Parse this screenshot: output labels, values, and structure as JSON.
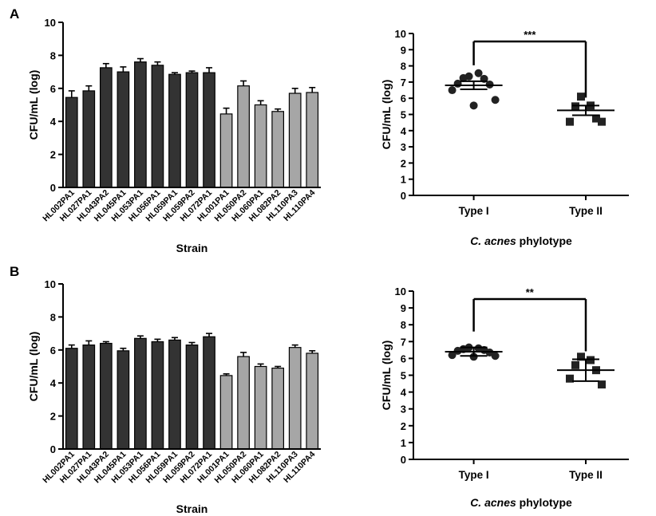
{
  "panel_labels": [
    "A",
    "B"
  ],
  "chart_data": [
    {
      "panel": "A",
      "type": "bar",
      "xlabel": "Strain",
      "ylabel": "CFU/mL (log)",
      "ylim": [
        0,
        10
      ],
      "yticks": [
        0,
        2,
        4,
        6,
        8,
        10
      ],
      "categories": [
        "HL002PA1",
        "HL027PA1",
        "HL043PA2",
        "HL045PA1",
        "HL053PA1",
        "HL056PA1",
        "HL059PA1",
        "HL059PA2",
        "HL072PA1",
        "HL001PA1",
        "HL050PA2",
        "HL060PA1",
        "HL082PA2",
        "HL110PA3",
        "HL110PA4"
      ],
      "values": [
        5.45,
        5.85,
        7.25,
        7.0,
        7.6,
        7.4,
        6.85,
        6.95,
        6.95,
        4.45,
        6.15,
        5.0,
        4.6,
        5.7,
        5.75
      ],
      "errors": [
        0.4,
        0.3,
        0.25,
        0.3,
        0.2,
        0.2,
        0.1,
        0.1,
        0.3,
        0.35,
        0.3,
        0.25,
        0.15,
        0.3,
        0.3
      ],
      "groups": [
        "I",
        "I",
        "I",
        "I",
        "I",
        "I",
        "I",
        "I",
        "I",
        "II",
        "II",
        "II",
        "II",
        "II",
        "II"
      ],
      "colors": {
        "I": "#333333",
        "II": "#a6a6a6"
      }
    },
    {
      "panel": "A",
      "type": "scatter",
      "xlabel": "C. acnes phylotype",
      "ylabel": "CFU/mL (log)",
      "ylim": [
        0,
        10
      ],
      "yticks": [
        0,
        1,
        2,
        3,
        4,
        5,
        6,
        7,
        8,
        9,
        10
      ],
      "groups": [
        {
          "name": "Type I",
          "marker": "circle",
          "mean": 6.8,
          "sem": 0.25,
          "points": [
            7.35,
            7.55,
            7.25,
            7.2,
            6.9,
            6.85,
            6.5,
            5.9,
            5.55
          ]
        },
        {
          "name": "Type II",
          "marker": "square",
          "mean": 5.25,
          "sem": 0.3,
          "points": [
            6.1,
            5.55,
            5.5,
            4.75,
            4.55,
            4.55
          ]
        }
      ],
      "significance": "***"
    },
    {
      "panel": "B",
      "type": "bar",
      "xlabel": "Strain",
      "ylabel": "CFU/mL (log)",
      "ylim": [
        0,
        10
      ],
      "yticks": [
        0,
        2,
        4,
        6,
        8,
        10
      ],
      "categories": [
        "HL002PA1",
        "HL027PA1",
        "HL043PA2",
        "HL045PA1",
        "HL053PA1",
        "HL056PA1",
        "HL059PA1",
        "HL059PA2",
        "HL072PA1",
        "HL001PA1",
        "HL050PA2",
        "HL060PA1",
        "HL082PA2",
        "HL110PA3",
        "HL110PA4"
      ],
      "values": [
        6.1,
        6.3,
        6.4,
        5.95,
        6.7,
        6.5,
        6.6,
        6.3,
        6.8,
        4.45,
        5.6,
        5.0,
        4.9,
        6.15,
        5.8
      ],
      "errors": [
        0.2,
        0.25,
        0.1,
        0.15,
        0.15,
        0.15,
        0.15,
        0.15,
        0.2,
        0.1,
        0.25,
        0.15,
        0.1,
        0.15,
        0.15
      ],
      "groups": [
        "I",
        "I",
        "I",
        "I",
        "I",
        "I",
        "I",
        "I",
        "I",
        "II",
        "II",
        "II",
        "II",
        "II",
        "II"
      ],
      "colors": {
        "I": "#333333",
        "II": "#a6a6a6"
      }
    },
    {
      "panel": "B",
      "type": "scatter",
      "xlabel": "C. acnes phylotype",
      "ylabel": "CFU/mL (log)",
      "ylim": [
        0,
        10
      ],
      "yticks": [
        0,
        1,
        2,
        3,
        4,
        5,
        6,
        7,
        8,
        9,
        10
      ],
      "groups": [
        {
          "name": "Type I",
          "marker": "circle",
          "mean": 6.4,
          "sem": 0.25,
          "points": [
            6.65,
            6.6,
            6.55,
            6.5,
            6.45,
            6.35,
            6.2,
            6.15,
            6.1
          ]
        },
        {
          "name": "Type II",
          "marker": "square",
          "mean": 5.3,
          "sem": 0.65,
          "points": [
            6.1,
            5.9,
            5.6,
            5.3,
            4.8,
            4.45
          ]
        }
      ],
      "significance": "**"
    }
  ]
}
